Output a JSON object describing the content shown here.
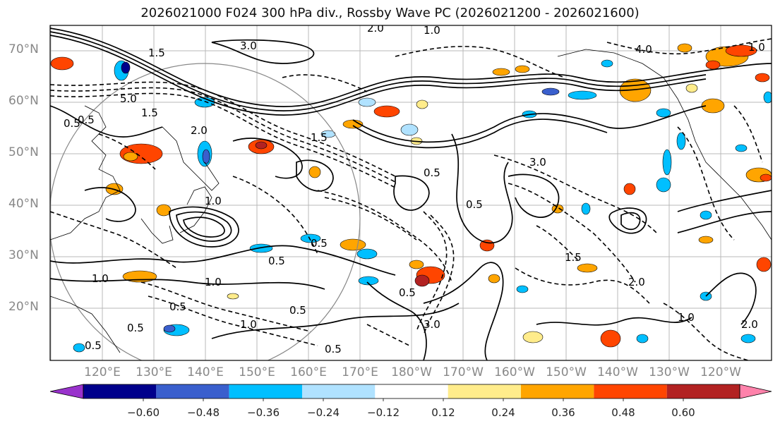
{
  "title": "2026021000 F024 300 hPa div., Rossby Wave PC (2026021200 - 2026021600)",
  "lat_labels": [
    "70°N",
    "60°N",
    "50°N",
    "40°N",
    "30°N",
    "20°N"
  ],
  "lon_labels": [
    "120°E",
    "130°E",
    "140°E",
    "150°E",
    "160°E",
    "170°E",
    "180°W",
    "170°W",
    "160°W",
    "150°W",
    "140°W",
    "130°W",
    "120°W"
  ],
  "colorbar": {
    "ticks": [
      "−0.60",
      "−0.48",
      "−0.36",
      "−0.24",
      "−0.12",
      "0.12",
      "0.24",
      "0.36",
      "0.48",
      "0.60"
    ],
    "colors": [
      "#9932cc",
      "#00008b",
      "#3a5fcd",
      "#00bfff",
      "#b0e2ff",
      "#ffffff",
      "#ffec8b",
      "#ffa500",
      "#ff4500",
      "#b22222",
      "#ff82ab"
    ]
  },
  "contour_labels": [
    "1.0",
    "1.5",
    "0.5",
    "3.0",
    "2.0",
    "4.0",
    "5.0",
    "1.0",
    "0.5",
    "3.0",
    "1.5",
    "0.5",
    "2.0",
    "1.0",
    "0.5",
    "0.5",
    "1.0",
    "1.5",
    "0.5",
    "1.0",
    "0.5",
    "1.0",
    "2.0",
    "0.5",
    "3.0",
    "1.0",
    "0.5",
    "2.0",
    "1.5",
    "0.5",
    "0.5",
    "0.5"
  ]
}
